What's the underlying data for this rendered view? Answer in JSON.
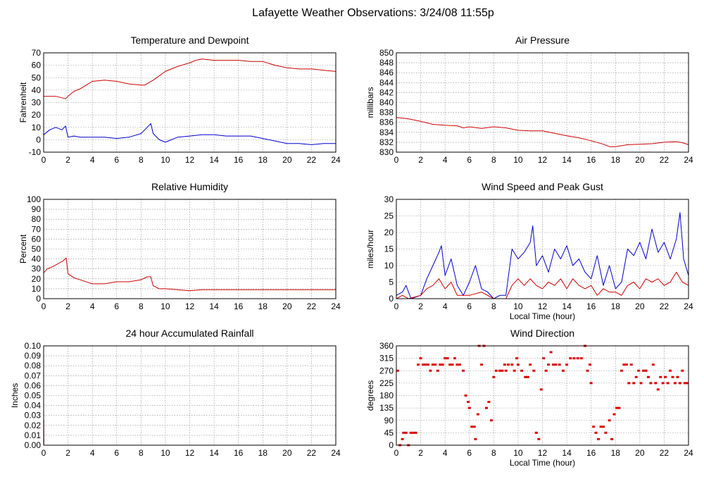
{
  "page": {
    "title": "Lafayette Weather Observations: 3/24/08 11:55p"
  },
  "chart_data": [
    {
      "id": "temp",
      "type": "line",
      "title": "Temperature and Dewpoint",
      "xlabel": "",
      "ylabel": "Fahrenheit",
      "xlim": [
        0,
        24
      ],
      "ylim": [
        -10,
        70
      ],
      "xticks": [
        0,
        2,
        4,
        6,
        8,
        10,
        12,
        14,
        16,
        18,
        20,
        22,
        24
      ],
      "yticks": [
        -10,
        0,
        10,
        20,
        30,
        40,
        50,
        60,
        70
      ],
      "ytick_labels": [
        "-10",
        "0",
        "10",
        "20",
        "30",
        "40",
        "50",
        "60",
        "70"
      ],
      "grid": true,
      "series": [
        {
          "name": "Temperature",
          "color": "#cc0000",
          "x": [
            0,
            1,
            1.8,
            2,
            2.5,
            3,
            3.5,
            4,
            5,
            6,
            7,
            8,
            8.3,
            9,
            10,
            11,
            12,
            12.5,
            13,
            14,
            15,
            16,
            17,
            18,
            19,
            20,
            21,
            22,
            23,
            24
          ],
          "y": [
            35,
            35,
            33,
            35,
            39,
            41,
            44,
            47,
            48,
            47,
            45,
            44,
            44,
            48,
            55,
            59,
            62,
            64,
            65,
            64,
            64,
            64,
            63,
            63,
            60,
            58,
            57,
            57,
            56,
            55
          ]
        },
        {
          "name": "Dewpoint",
          "color": "#0000cc",
          "x": [
            0,
            0.5,
            1,
            1.5,
            1.8,
            2,
            2.5,
            3,
            4,
            5,
            6,
            7,
            8,
            8.5,
            8.8,
            9,
            9.5,
            10,
            11,
            12,
            13,
            14,
            15,
            16,
            17,
            18,
            19,
            20,
            21,
            22,
            23,
            24
          ],
          "y": [
            4,
            8,
            10,
            8,
            11,
            2,
            3,
            2,
            2,
            2,
            1,
            2,
            5,
            10,
            13,
            5,
            0,
            -2,
            2,
            3,
            4,
            4,
            3,
            3,
            3,
            1,
            -1,
            -3,
            -3,
            -4,
            -3,
            -3
          ]
        }
      ]
    },
    {
      "id": "pressure",
      "type": "line",
      "title": "Air Pressure",
      "xlabel": "",
      "ylabel": "millibars",
      "xlim": [
        0,
        24
      ],
      "ylim": [
        830,
        850
      ],
      "xticks": [
        0,
        2,
        4,
        6,
        8,
        10,
        12,
        14,
        16,
        18,
        20,
        22,
        24
      ],
      "yticks": [
        830,
        832,
        834,
        836,
        838,
        840,
        842,
        844,
        846,
        848,
        850
      ],
      "ytick_labels": [
        "830",
        "832",
        "834",
        "836",
        "838",
        "840",
        "842",
        "844",
        "846",
        "848",
        "850"
      ],
      "grid": true,
      "series": [
        {
          "name": "Pressure",
          "color": "#cc0000",
          "x": [
            0,
            1,
            2,
            3,
            4,
            5,
            5.5,
            6,
            7,
            8,
            9,
            10,
            11,
            12,
            13,
            14,
            15,
            16,
            17,
            17.5,
            18,
            19,
            20,
            21,
            22,
            23,
            23.5,
            24
          ],
          "y": [
            837,
            836.7,
            836.2,
            835.6,
            835.4,
            835.3,
            834.9,
            835.1,
            834.8,
            835.1,
            834.9,
            834.4,
            834.3,
            834.3,
            833.8,
            833.3,
            832.9,
            832.3,
            831.6,
            831.1,
            831.1,
            831.5,
            831.6,
            831.7,
            832.0,
            832.1,
            831.9,
            831.5
          ]
        }
      ]
    },
    {
      "id": "humidity",
      "type": "line",
      "title": "Relative Humidity",
      "xlabel": "",
      "ylabel": "Percent",
      "xlim": [
        0,
        24
      ],
      "ylim": [
        0,
        100
      ],
      "xticks": [
        0,
        2,
        4,
        6,
        8,
        10,
        12,
        14,
        16,
        18,
        20,
        22,
        24
      ],
      "yticks": [
        0,
        10,
        20,
        30,
        40,
        50,
        60,
        70,
        80,
        90,
        100
      ],
      "ytick_labels": [
        "0",
        "10",
        "20",
        "30",
        "40",
        "50",
        "60",
        "70",
        "80",
        "90",
        "100"
      ],
      "grid": true,
      "series": [
        {
          "name": "Relative Humidity",
          "color": "#cc0000",
          "x": [
            0,
            0.3,
            0.7,
            1,
            1.3,
            1.6,
            1.85,
            2,
            2.5,
            3,
            4,
            5,
            6,
            7,
            8,
            8.5,
            8.8,
            9,
            9.5,
            10,
            11,
            12,
            13,
            14,
            16,
            18,
            20,
            22,
            24
          ],
          "y": [
            26,
            30,
            32,
            34,
            36,
            38,
            41,
            25,
            21,
            19,
            15,
            15,
            17,
            17,
            19,
            22,
            22,
            13,
            10,
            10,
            9,
            8,
            9,
            9,
            9,
            9,
            9,
            9,
            9
          ]
        }
      ]
    },
    {
      "id": "wind",
      "type": "line",
      "title": "Wind Speed and Peak Gust",
      "xlabel": "Local Time (hour)",
      "ylabel": "miles/hour",
      "xlim": [
        0,
        24
      ],
      "ylim": [
        0,
        30
      ],
      "xticks": [
        0,
        2,
        4,
        6,
        8,
        10,
        12,
        14,
        16,
        18,
        20,
        22,
        24
      ],
      "yticks": [
        0,
        5,
        10,
        15,
        20,
        25,
        30
      ],
      "ytick_labels": [
        "0",
        "5",
        "10",
        "15",
        "20",
        "25",
        "30"
      ],
      "grid": true,
      "series": [
        {
          "name": "Peak Gust",
          "color": "#0000cc",
          "x": [
            0,
            0.5,
            0.8,
            1.2,
            2,
            2.5,
            3,
            3.5,
            3.7,
            4,
            4.5,
            5,
            5.5,
            6,
            6.5,
            7,
            7.5,
            8,
            8.5,
            9,
            9.5,
            10,
            10.5,
            11,
            11.2,
            11.5,
            12,
            12.5,
            13,
            13.5,
            14,
            14.5,
            15,
            15.5,
            16,
            16.5,
            17,
            17.5,
            18,
            18.5,
            19,
            19.5,
            20,
            20.5,
            21,
            21.5,
            22,
            22.5,
            23,
            23.3,
            23.6,
            24
          ],
          "y": [
            1,
            2,
            4,
            0,
            1,
            6,
            10,
            14,
            16,
            7,
            12,
            4,
            1,
            5,
            10,
            3,
            2,
            0,
            1,
            1,
            15,
            12,
            14,
            17,
            22,
            10,
            13,
            8,
            15,
            12,
            16,
            10,
            12,
            8,
            6,
            13,
            4,
            10,
            3,
            5,
            15,
            13,
            17,
            12,
            21,
            14,
            17,
            12,
            18,
            26,
            12,
            7
          ]
        },
        {
          "name": "Wind Speed",
          "color": "#cc0000",
          "x": [
            0,
            0.5,
            1,
            2,
            2.5,
            3,
            3.5,
            4,
            4.5,
            5,
            6,
            7,
            8,
            9,
            9.5,
            10,
            10.5,
            11,
            11.5,
            12,
            12.5,
            13,
            13.5,
            14,
            14.5,
            15,
            15.5,
            16,
            16.5,
            17,
            17.5,
            18,
            18.5,
            19,
            19.5,
            20,
            20.5,
            21,
            21.5,
            22,
            22.5,
            23,
            23.5,
            24
          ],
          "y": [
            0,
            1,
            0,
            1,
            3,
            4,
            6,
            3,
            5,
            1,
            1,
            2,
            0,
            0,
            4,
            6,
            4,
            6,
            4,
            3,
            5,
            4,
            6,
            3,
            6,
            4,
            3,
            4,
            1,
            3,
            2,
            2,
            1,
            4,
            5,
            3,
            6,
            5,
            6,
            4,
            5,
            8,
            5,
            4
          ]
        }
      ]
    },
    {
      "id": "rain",
      "type": "line",
      "title": "24 hour Accumulated Rainfall",
      "xlabel": "",
      "ylabel": "Inches",
      "xlim": [
        0,
        24
      ],
      "ylim": [
        0,
        0.1
      ],
      "xticks": [
        0,
        2,
        4,
        6,
        8,
        10,
        12,
        14,
        16,
        18,
        20,
        22,
        24
      ],
      "yticks": [
        0,
        0.01,
        0.02,
        0.03,
        0.04,
        0.05,
        0.06,
        0.07,
        0.08,
        0.09,
        0.1
      ],
      "ytick_labels": [
        "0.00",
        "0.01",
        "0.02",
        "0.03",
        "0.04",
        "0.05",
        "0.06",
        "0.07",
        "0.08",
        "0.09",
        "0.10"
      ],
      "grid": true,
      "series": [
        {
          "name": "Rainfall",
          "color": "#cc0000",
          "x": [
            0,
            0.01,
            0.02,
            24
          ],
          "y": [
            0.025,
            0.025,
            0,
            0
          ]
        }
      ]
    },
    {
      "id": "winddir",
      "type": "scatter",
      "title": "Wind Direction",
      "xlabel": "Local Time (hour)",
      "ylabel": "degrees",
      "xlim": [
        0,
        24
      ],
      "ylim": [
        0,
        360
      ],
      "xticks": [
        0,
        2,
        4,
        6,
        8,
        10,
        12,
        14,
        16,
        18,
        20,
        22,
        24
      ],
      "yticks": [
        0,
        45,
        90,
        135,
        180,
        225,
        270,
        315,
        360
      ],
      "ytick_labels": [
        "0",
        "45",
        "90",
        "135",
        "180",
        "225",
        "270",
        "315",
        "360"
      ],
      "grid": true,
      "series": [
        {
          "name": "Wind Direction",
          "color": "#dd0000",
          "x": [
            0.1,
            0.3,
            0.5,
            0.6,
            0.8,
            1.0,
            1.2,
            1.4,
            1.6,
            1.8,
            2.0,
            2.2,
            2.4,
            2.6,
            2.8,
            3.0,
            3.2,
            3.4,
            3.6,
            3.8,
            4.0,
            4.2,
            4.4,
            4.6,
            4.8,
            5.0,
            5.2,
            5.5,
            5.7,
            5.9,
            6.0,
            6.2,
            6.4,
            6.5,
            6.7,
            6.8,
            7.0,
            7.2,
            7.4,
            7.6,
            7.8,
            8.0,
            8.2,
            8.5,
            8.7,
            8.9,
            9.0,
            9.2,
            9.5,
            9.7,
            9.9,
            10.0,
            10.3,
            10.6,
            10.8,
            11.0,
            11.3,
            11.5,
            11.7,
            11.9,
            12.1,
            12.3,
            12.5,
            12.7,
            12.9,
            13.1,
            13.4,
            13.7,
            14.0,
            14.3,
            14.6,
            14.9,
            15.2,
            15.5,
            15.7,
            15.9,
            16.0,
            16.2,
            16.4,
            16.6,
            16.8,
            17.0,
            17.2,
            17.5,
            17.7,
            17.9,
            18.1,
            18.3,
            18.5,
            18.7,
            18.9,
            19.1,
            19.3,
            19.5,
            19.7,
            19.9,
            20.1,
            20.3,
            20.5,
            20.7,
            20.9,
            21.1,
            21.3,
            21.5,
            21.7,
            21.9,
            22.1,
            22.3,
            22.5,
            22.7,
            22.9,
            23.1,
            23.3,
            23.5,
            23.7,
            23.9
          ],
          "y": [
            270,
            0,
            22,
            45,
            45,
            0,
            45,
            45,
            45,
            292,
            315,
            292,
            292,
            292,
            270,
            292,
            292,
            270,
            292,
            292,
            315,
            315,
            292,
            292,
            315,
            292,
            292,
            270,
            180,
            157,
            135,
            67,
            67,
            22,
            112,
            360,
            292,
            360,
            135,
            157,
            90,
            247,
            270,
            270,
            270,
            292,
            270,
            292,
            292,
            270,
            315,
            292,
            270,
            247,
            247,
            292,
            270,
            45,
            22,
            202,
            315,
            270,
            292,
            337,
            292,
            292,
            292,
            270,
            292,
            315,
            315,
            315,
            315,
            360,
            270,
            292,
            225,
            67,
            45,
            22,
            67,
            67,
            45,
            90,
            22,
            112,
            135,
            135,
            270,
            292,
            292,
            225,
            292,
            225,
            247,
            270,
            225,
            270,
            270,
            247,
            225,
            292,
            225,
            202,
            247,
            225,
            247,
            225,
            270,
            247,
            225,
            247,
            225,
            270,
            225,
            225
          ]
        }
      ]
    }
  ]
}
